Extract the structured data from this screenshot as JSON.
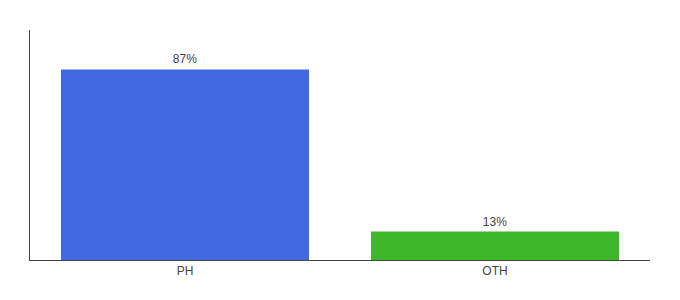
{
  "chart_data": {
    "type": "bar",
    "categories": [
      "PH",
      "OTH"
    ],
    "values": [
      87,
      13
    ],
    "value_labels": [
      "87%",
      "13%"
    ],
    "colors": [
      "#4169e1",
      "#3cb829"
    ],
    "data_labels": true,
    "ylim": [
      0,
      105
    ],
    "tick_labels": "x",
    "grid": false
  }
}
